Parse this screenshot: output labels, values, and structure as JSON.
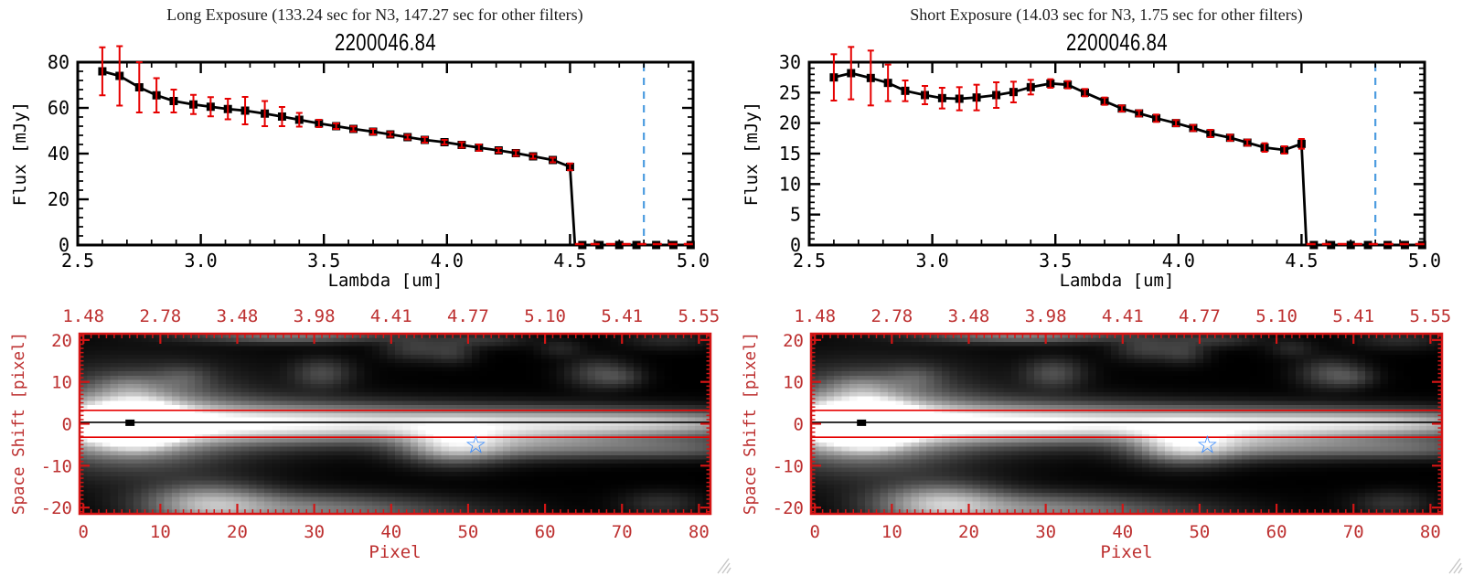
{
  "colors": {
    "line_black": "#000000",
    "error_red": "#e60000",
    "frame_red": "#d41515",
    "label_red": "#bd3030",
    "dashed_blue": "#4d9ce0",
    "star_blue": "#2e86ff",
    "grip_gray": "#c6c6c6"
  },
  "chart_data": [
    {
      "type": "line",
      "title": "Long Exposure (133.24 sec for N3, 147.27 sec for other filters)",
      "subtitle": "2200046.84",
      "xlabel": "Lambda [um]",
      "ylabel": "Flux [mJy]",
      "xlim": [
        2.5,
        5.0
      ],
      "ylim": [
        0,
        80
      ],
      "x_major_ticks": [
        2.5,
        3.0,
        3.5,
        4.0,
        4.5,
        5.0
      ],
      "x_tick_labels": [
        "2.5",
        "3.0",
        "3.5",
        "4.0",
        "4.5",
        "5.0"
      ],
      "x_minor_step": 0.1,
      "y_major_ticks": [
        0,
        20,
        40,
        60,
        80
      ],
      "y_tick_labels": [
        "0",
        "20",
        "40",
        "60",
        "80"
      ],
      "y_minor_step": 4,
      "x": [
        2.6,
        2.67,
        2.75,
        2.82,
        2.89,
        2.97,
        3.04,
        3.11,
        3.18,
        3.26,
        3.33,
        3.4,
        3.48,
        3.55,
        3.62,
        3.7,
        3.77,
        3.84,
        3.91,
        3.99,
        4.06,
        4.13,
        4.21,
        4.28,
        4.35,
        4.43,
        4.5
      ],
      "y": [
        76.0,
        74.0,
        69.0,
        65.5,
        63.0,
        61.5,
        60.5,
        59.5,
        58.8,
        57.5,
        56.2,
        54.8,
        53.2,
        52.0,
        50.8,
        49.6,
        48.4,
        47.2,
        46.0,
        45.0,
        43.8,
        42.6,
        41.4,
        40.2,
        38.8,
        37.2,
        34.2
      ],
      "yerr": [
        10.5,
        13.0,
        11.0,
        7.5,
        5.0,
        4.2,
        4.2,
        4.5,
        6.0,
        5.5,
        4.2,
        3.0,
        1.6,
        1.2,
        1.1,
        1.2,
        1.0,
        1.0,
        1.2,
        1.0,
        1.2,
        1.4,
        1.0,
        1.2,
        1.0,
        1.0,
        1.5
      ],
      "drop_x": 4.52,
      "zero_tail_x": [
        4.55,
        4.62,
        4.7,
        4.77,
        4.85,
        4.92,
        4.99
      ],
      "zero_line": {
        "from": 4.52,
        "to": 5.0,
        "y": 0,
        "style": "dashed"
      },
      "vline": {
        "x": 4.8,
        "style": "dashed"
      }
    },
    {
      "type": "line",
      "title": "Short Exposure (14.03 sec for N3, 1.75 sec for other filters)",
      "subtitle": "2200046.84",
      "xlabel": "Lambda [um]",
      "ylabel": "Flux [mJy]",
      "xlim": [
        2.5,
        5.0
      ],
      "ylim": [
        0,
        30
      ],
      "x_major_ticks": [
        2.5,
        3.0,
        3.5,
        4.0,
        4.5,
        5.0
      ],
      "x_tick_labels": [
        "2.5",
        "3.0",
        "3.5",
        "4.0",
        "4.5",
        "5.0"
      ],
      "x_minor_step": 0.1,
      "y_major_ticks": [
        0,
        5,
        10,
        15,
        20,
        25,
        30
      ],
      "y_tick_labels": [
        "0",
        "5",
        "10",
        "15",
        "20",
        "25",
        "30"
      ],
      "y_minor_step": 1,
      "x": [
        2.6,
        2.67,
        2.75,
        2.82,
        2.89,
        2.97,
        3.04,
        3.11,
        3.18,
        3.26,
        3.33,
        3.4,
        3.48,
        3.55,
        3.62,
        3.7,
        3.77,
        3.84,
        3.91,
        3.99,
        4.06,
        4.13,
        4.21,
        4.28,
        4.35,
        4.43,
        4.5
      ],
      "y": [
        27.5,
        28.2,
        27.4,
        26.6,
        25.3,
        24.6,
        24.1,
        24.0,
        24.2,
        24.6,
        25.1,
        25.9,
        26.5,
        26.3,
        25.0,
        23.6,
        22.4,
        21.6,
        20.8,
        20.0,
        19.2,
        18.3,
        17.6,
        16.8,
        16.0,
        15.6,
        16.6
      ],
      "yerr": [
        3.8,
        4.3,
        4.5,
        3.0,
        1.7,
        1.5,
        1.7,
        1.9,
        2.1,
        2.1,
        1.7,
        1.2,
        0.7,
        0.6,
        0.6,
        0.6,
        0.5,
        0.5,
        0.6,
        0.5,
        0.5,
        0.6,
        0.5,
        0.5,
        0.7,
        0.6,
        0.8
      ],
      "drop_x": 4.52,
      "zero_tail_x": [
        4.55,
        4.62,
        4.7,
        4.77,
        4.85,
        4.92,
        4.99
      ],
      "zero_line": {
        "from": 4.52,
        "to": 5.0,
        "y": 0,
        "style": "dashed"
      },
      "vline": {
        "x": 4.8,
        "style": "dashed"
      }
    },
    {
      "type": "heatmap",
      "xlabel": "Pixel",
      "ylabel": "Space Shift [pixel]",
      "xlim": [
        -0.5,
        81.5
      ],
      "ylim": [
        -21.5,
        21.5
      ],
      "x_major_ticks": [
        0,
        10,
        20,
        30,
        40,
        50,
        60,
        70,
        80
      ],
      "x_tick_labels": [
        "0",
        "10",
        "20",
        "30",
        "40",
        "50",
        "60",
        "70",
        "80"
      ],
      "y_major_ticks": [
        -20,
        -10,
        0,
        10,
        20
      ],
      "y_tick_labels": [
        "-20",
        "-10",
        "0",
        "10",
        "20"
      ],
      "minor_step": 1,
      "top_axis_labels": [
        "1.48",
        "2.78",
        "3.48",
        "3.98",
        "4.41",
        "4.77",
        "5.10",
        "5.41",
        "5.55"
      ],
      "aperture_lines_y": [
        3.2,
        -3.2
      ],
      "center_line_y": 0.35,
      "source_marker": {
        "x": 6,
        "y": 0.35
      },
      "star": {
        "x": 51,
        "y": -5
      },
      "gain": 1.0,
      "gaussians": [
        [
          0,
          0,
          6,
          4,
          0.5
        ],
        [
          7,
          0,
          3.2,
          3.0,
          1.5
        ],
        [
          7,
          0,
          7,
          6,
          0.55
        ],
        [
          7,
          1,
          13,
          9,
          0.2
        ],
        [
          6,
          9,
          3,
          2,
          0.18
        ],
        [
          20,
          0,
          14,
          3.2,
          0.6
        ],
        [
          40,
          0,
          18,
          2.8,
          0.48
        ],
        [
          58,
          0,
          15,
          2.4,
          0.36
        ],
        [
          70,
          0,
          12,
          2.2,
          0.3
        ],
        [
          80,
          0,
          9,
          2.0,
          0.26
        ],
        [
          48,
          -5,
          4.5,
          3.0,
          0.6
        ],
        [
          56,
          -5,
          8,
          2.4,
          0.3
        ],
        [
          68,
          -5.5,
          10,
          1.8,
          0.22
        ],
        [
          79,
          -6,
          8,
          1.6,
          0.18
        ],
        [
          16,
          -19,
          5.5,
          3.2,
          0.55
        ],
        [
          26,
          -20,
          9,
          2.5,
          0.3
        ],
        [
          38,
          -21,
          11,
          2.5,
          0.22
        ],
        [
          31,
          12,
          2.6,
          2.4,
          0.22
        ],
        [
          13,
          11,
          2.5,
          2.0,
          0.15
        ],
        [
          43,
          18,
          2.8,
          2.0,
          0.18
        ],
        [
          48,
          17,
          2.0,
          1.8,
          0.15
        ],
        [
          67,
          12,
          2.8,
          2.4,
          0.22
        ],
        [
          70,
          11,
          2.0,
          1.5,
          0.12
        ],
        [
          27,
          21,
          9,
          1.2,
          0.4
        ],
        [
          52,
          20,
          4,
          1.2,
          0.15
        ],
        [
          75,
          -19,
          3.5,
          2.0,
          0.14
        ],
        [
          62,
          18,
          2.0,
          1.5,
          0.1
        ],
        [
          76,
          20,
          4,
          1.5,
          0.12
        ]
      ]
    },
    {
      "type": "heatmap",
      "xlabel": "Pixel",
      "ylabel": "Space Shift [pixel]",
      "xlim": [
        -0.5,
        81.5
      ],
      "ylim": [
        -21.5,
        21.5
      ],
      "x_major_ticks": [
        0,
        10,
        20,
        30,
        40,
        50,
        60,
        70,
        80
      ],
      "x_tick_labels": [
        "0",
        "10",
        "20",
        "30",
        "40",
        "50",
        "60",
        "70",
        "80"
      ],
      "y_major_ticks": [
        -20,
        -10,
        0,
        10,
        20
      ],
      "y_tick_labels": [
        "-20",
        "-10",
        "0",
        "10",
        "20"
      ],
      "minor_step": 1,
      "top_axis_labels": [
        "1.48",
        "2.78",
        "3.48",
        "3.98",
        "4.41",
        "4.77",
        "5.10",
        "5.41",
        "5.55"
      ],
      "aperture_lines_y": [
        3.2,
        -3.2
      ],
      "center_line_y": 0.35,
      "source_marker": {
        "x": 6,
        "y": 0.35
      },
      "star": {
        "x": 51,
        "y": -5
      },
      "gain": 1.08,
      "gaussians": [
        [
          0,
          0,
          6,
          4,
          0.5
        ],
        [
          7,
          0,
          3.2,
          3.0,
          1.5
        ],
        [
          7,
          0,
          7,
          6,
          0.55
        ],
        [
          7,
          1,
          13,
          9,
          0.2
        ],
        [
          6,
          9,
          3,
          2,
          0.18
        ],
        [
          20,
          0,
          14,
          3.2,
          0.6
        ],
        [
          40,
          0,
          18,
          2.8,
          0.48
        ],
        [
          58,
          0,
          15,
          2.4,
          0.36
        ],
        [
          70,
          0,
          12,
          2.2,
          0.3
        ],
        [
          80,
          0,
          9,
          2.0,
          0.26
        ],
        [
          48,
          -5,
          4.5,
          3.0,
          0.6
        ],
        [
          56,
          -5,
          8,
          2.4,
          0.3
        ],
        [
          68,
          -5.5,
          10,
          1.8,
          0.22
        ],
        [
          79,
          -6,
          8,
          1.6,
          0.18
        ],
        [
          16,
          -19,
          5.5,
          3.2,
          0.55
        ],
        [
          26,
          -20,
          9,
          2.5,
          0.3
        ],
        [
          38,
          -21,
          11,
          2.5,
          0.22
        ],
        [
          31,
          12,
          2.6,
          2.4,
          0.22
        ],
        [
          13,
          11,
          2.5,
          2.0,
          0.15
        ],
        [
          43,
          18,
          2.8,
          2.0,
          0.18
        ],
        [
          48,
          17,
          2.0,
          1.8,
          0.15
        ],
        [
          67,
          12,
          2.8,
          2.4,
          0.22
        ],
        [
          70,
          11,
          2.0,
          1.5,
          0.12
        ],
        [
          27,
          21,
          9,
          1.2,
          0.4
        ],
        [
          52,
          20,
          4,
          1.2,
          0.15
        ],
        [
          75,
          -19,
          3.5,
          2.0,
          0.14
        ],
        [
          62,
          18,
          2.0,
          1.5,
          0.1
        ],
        [
          76,
          20,
          4,
          1.5,
          0.12
        ]
      ]
    }
  ]
}
